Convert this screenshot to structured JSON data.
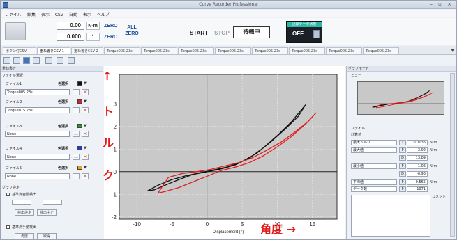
{
  "window": {
    "title": "Curve Recorder Professional"
  },
  "menu": [
    "ファイル",
    "編集",
    "表示",
    "CSV",
    "自動",
    "表示",
    "ヘルプ"
  ],
  "toolbar": {
    "torque_value": "0.00",
    "torque_unit": "N-m",
    "angle_value": "0.000",
    "angle_unit": "°",
    "zero_label": "ZERO",
    "all_label": "ALL",
    "start_label": "START",
    "stop_label": "STOP",
    "status_label": "待機中",
    "rec_header": "記録データ状態",
    "rec_state": "OFF"
  },
  "tabs": [
    "ボタン付CSV",
    "重ね書きCSV 1",
    "重ね書きCSV 2",
    "Torque005.23s",
    "Torque005.23s",
    "Torque005.23s",
    "Torque005.23s",
    "Torque005.23s",
    "Torque005.23s",
    "Torque005.23s",
    "Torque005.23s"
  ],
  "left_panel": {
    "header": "重ね書き",
    "section": "ファイル選択",
    "color_label": "色選択",
    "files": [
      {
        "label": "ファイル1",
        "value": "Torque005.23s",
        "color": "#111111"
      },
      {
        "label": "ファイル2",
        "value": "Torque015.23s",
        "color": "#e02020"
      },
      {
        "label": "ファイル3",
        "value": "None",
        "color": "#18a018"
      },
      {
        "label": "ファイル4",
        "value": "None",
        "color": "#1e38d8"
      },
      {
        "label": "ファイル5",
        "value": "None",
        "color": "#f0a020"
      }
    ],
    "graph_section": "グラフ設定",
    "check1": "基準点自動検出",
    "btn_set": "検出設定",
    "btn_stop": "検出中止",
    "check2": "基準点手動検出",
    "btn_a": "再度",
    "btn_b": "取得"
  },
  "annotations": {
    "y_jp": [
      "↑",
      "ト",
      "ル",
      "ク"
    ],
    "x_jp": "角度 →"
  },
  "right_panel": {
    "header": "グラフモード",
    "preview_label": "ビュー",
    "file_info": "ファイル",
    "calc_label": "計算値",
    "rows": [
      {
        "label": "最大トルク",
        "key": "T",
        "value": "0.0035",
        "unit": "N-m"
      },
      {
        "label": "最大値",
        "key": "P",
        "value": "3.02",
        "unit": "N-m"
      },
      {
        "label": "",
        "key": "D",
        "value": "13.89",
        "unit": ""
      },
      {
        "label": "最小値",
        "key": "P",
        "value": "-1.05",
        "unit": "N-m"
      },
      {
        "label": "",
        "key": "D",
        "value": "-6.95",
        "unit": ""
      },
      {
        "label": "平均値",
        "key": "P",
        "value": "0.565",
        "unit": "N-m"
      },
      {
        "label": "データ数",
        "key": "P",
        "value": "1971",
        "unit": ""
      }
    ],
    "comment_label": "コメント"
  },
  "chart_data": {
    "type": "line",
    "xlabel": "Displacement (°)",
    "ylabel": "",
    "xlim": [
      -12.5,
      18.5
    ],
    "ylim": [
      -2.1,
      4.3
    ],
    "xticks": [
      -10,
      -5,
      0,
      5,
      10,
      15
    ],
    "yticks": [
      -2,
      -1,
      0,
      1,
      2,
      3
    ],
    "grid": true,
    "series": [
      {
        "color": "#111111",
        "x": [
          -8.5,
          -7.5,
          -6,
          -4,
          -2,
          0,
          2,
          4,
          6,
          8,
          10,
          12,
          14,
          13,
          11,
          9,
          7,
          5,
          3,
          1,
          -1,
          -3,
          -5,
          -7,
          -8.5
        ],
        "y": [
          -0.85,
          -0.8,
          -0.6,
          -0.35,
          -0.12,
          0.0,
          0.12,
          0.3,
          0.6,
          1.05,
          1.6,
          2.2,
          2.95,
          2.45,
          1.85,
          1.3,
          0.8,
          0.45,
          0.22,
          0.08,
          -0.05,
          -0.18,
          -0.35,
          -0.6,
          -0.85
        ]
      },
      {
        "color": "#e02020",
        "x": [
          -7,
          -6,
          -4,
          -2,
          0,
          2,
          4,
          6,
          8,
          10,
          12,
          14,
          15.5,
          14.5,
          12.5,
          10.5,
          8.5,
          6.5,
          4.5,
          2.5,
          0.5,
          -1.5,
          -3.5,
          -5.5,
          -7
        ],
        "y": [
          -0.95,
          -0.88,
          -0.7,
          -0.45,
          -0.2,
          0.05,
          0.2,
          0.4,
          0.7,
          1.1,
          1.55,
          2.1,
          2.6,
          2.25,
          1.75,
          1.3,
          0.95,
          0.62,
          0.4,
          0.25,
          0.1,
          0.0,
          -0.08,
          -0.25,
          -0.95
        ]
      }
    ]
  }
}
